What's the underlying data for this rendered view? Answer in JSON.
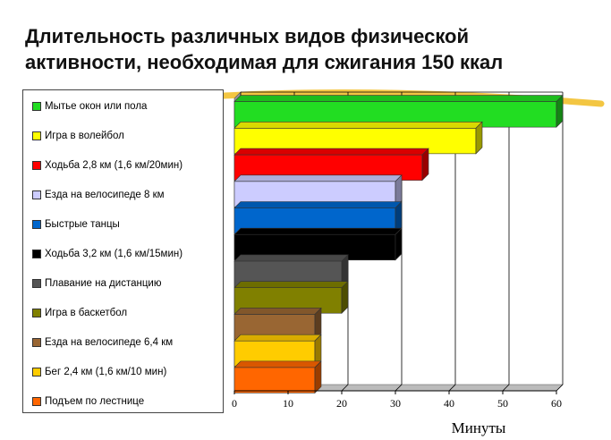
{
  "chart_data": {
    "type": "bar",
    "orientation": "horizontal",
    "title": [
      "Длительность различных видов физической",
      "активности, необходимая для сжигания 150 ккал"
    ],
    "xlabel": "Минуты",
    "xlim": [
      0,
      60
    ],
    "xticks": [
      "0",
      "10",
      "20",
      "30",
      "40",
      "50",
      "60"
    ],
    "grid": true,
    "legend_position": "left",
    "categories": [
      "Мытье окон или пола",
      "Игра в волейбол",
      "Ходьба 2,8 км (1,6 км/20мин)",
      "Езда на велосипеде 8 км",
      "Быстрые танцы",
      "Ходьба 3,2 км (1,6 км/15мин)",
      "Плавание на дистанцию",
      "Игра в баскетбол",
      "Езда на велосипеде 6,4 км",
      "Бег 2,4 км (1,6 км/10 мин)",
      "Подъем по лестнице"
    ],
    "values": [
      60,
      45,
      35,
      30,
      30,
      30,
      20,
      20,
      15,
      15,
      15
    ],
    "colors": [
      "#22dd22",
      "#ffff00",
      "#ff0000",
      "#ccccff",
      "#0066cc",
      "#000000",
      "#555555",
      "#808000",
      "#996633",
      "#ffcc00",
      "#ff6600"
    ]
  }
}
